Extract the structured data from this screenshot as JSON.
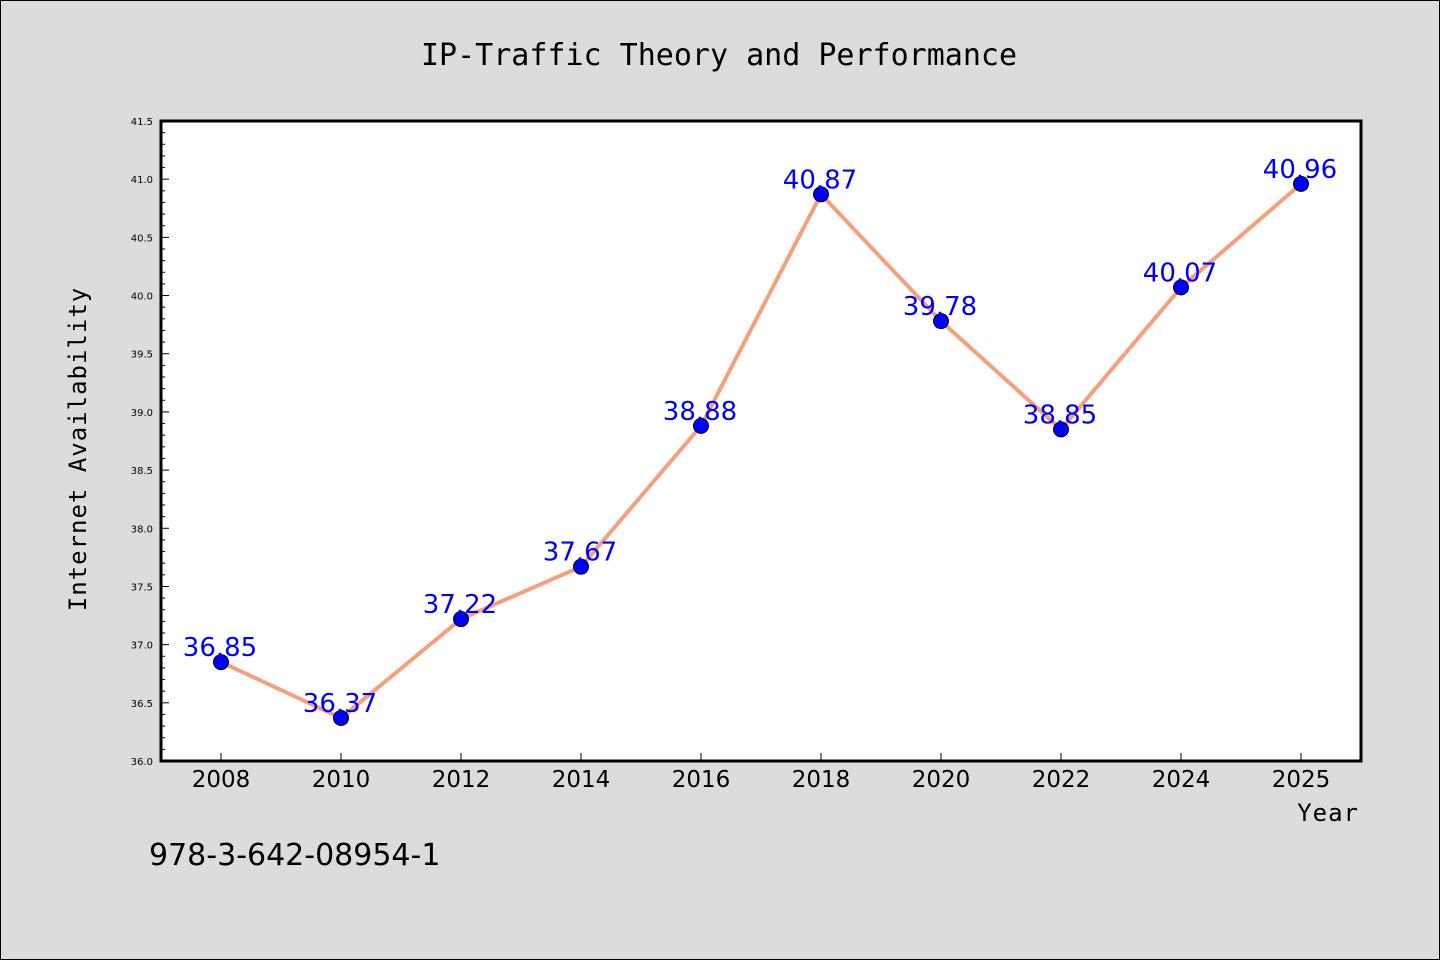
{
  "chart_data": {
    "type": "line",
    "title": "IP-Traffic Theory and Performance",
    "xlabel": "Year",
    "ylabel": "Internet Availability",
    "categories": [
      "2008",
      "2010",
      "2012",
      "2014",
      "2016",
      "2018",
      "2020",
      "2022",
      "2024",
      "2025"
    ],
    "series": [
      {
        "values": [
          36.85,
          36.37,
          37.22,
          37.67,
          38.88,
          40.87,
          39.78,
          38.85,
          40.07,
          40.96
        ]
      }
    ],
    "data_labels": [
      "36.85",
      "36.37",
      "37.22",
      "37.67",
      "38.88",
      "40.87",
      "39.78",
      "38.85",
      "40.07",
      "40.96"
    ],
    "yticks": [
      "36.0",
      "36.5",
      "37.0",
      "37.5",
      "38.0",
      "38.5",
      "39.0",
      "39.5",
      "40.0",
      "40.5",
      "41.0",
      "41.5"
    ],
    "ylim": [
      36.0,
      41.5
    ],
    "grid": false,
    "legend": "none",
    "colors": {
      "line": "#f4a07a",
      "marker": "#0000ff",
      "label": "#0000ff",
      "background": "#dcdcdc",
      "plot_area": "#ffffff"
    }
  },
  "footer": {
    "isbn": "978-3-642-08954-1"
  }
}
